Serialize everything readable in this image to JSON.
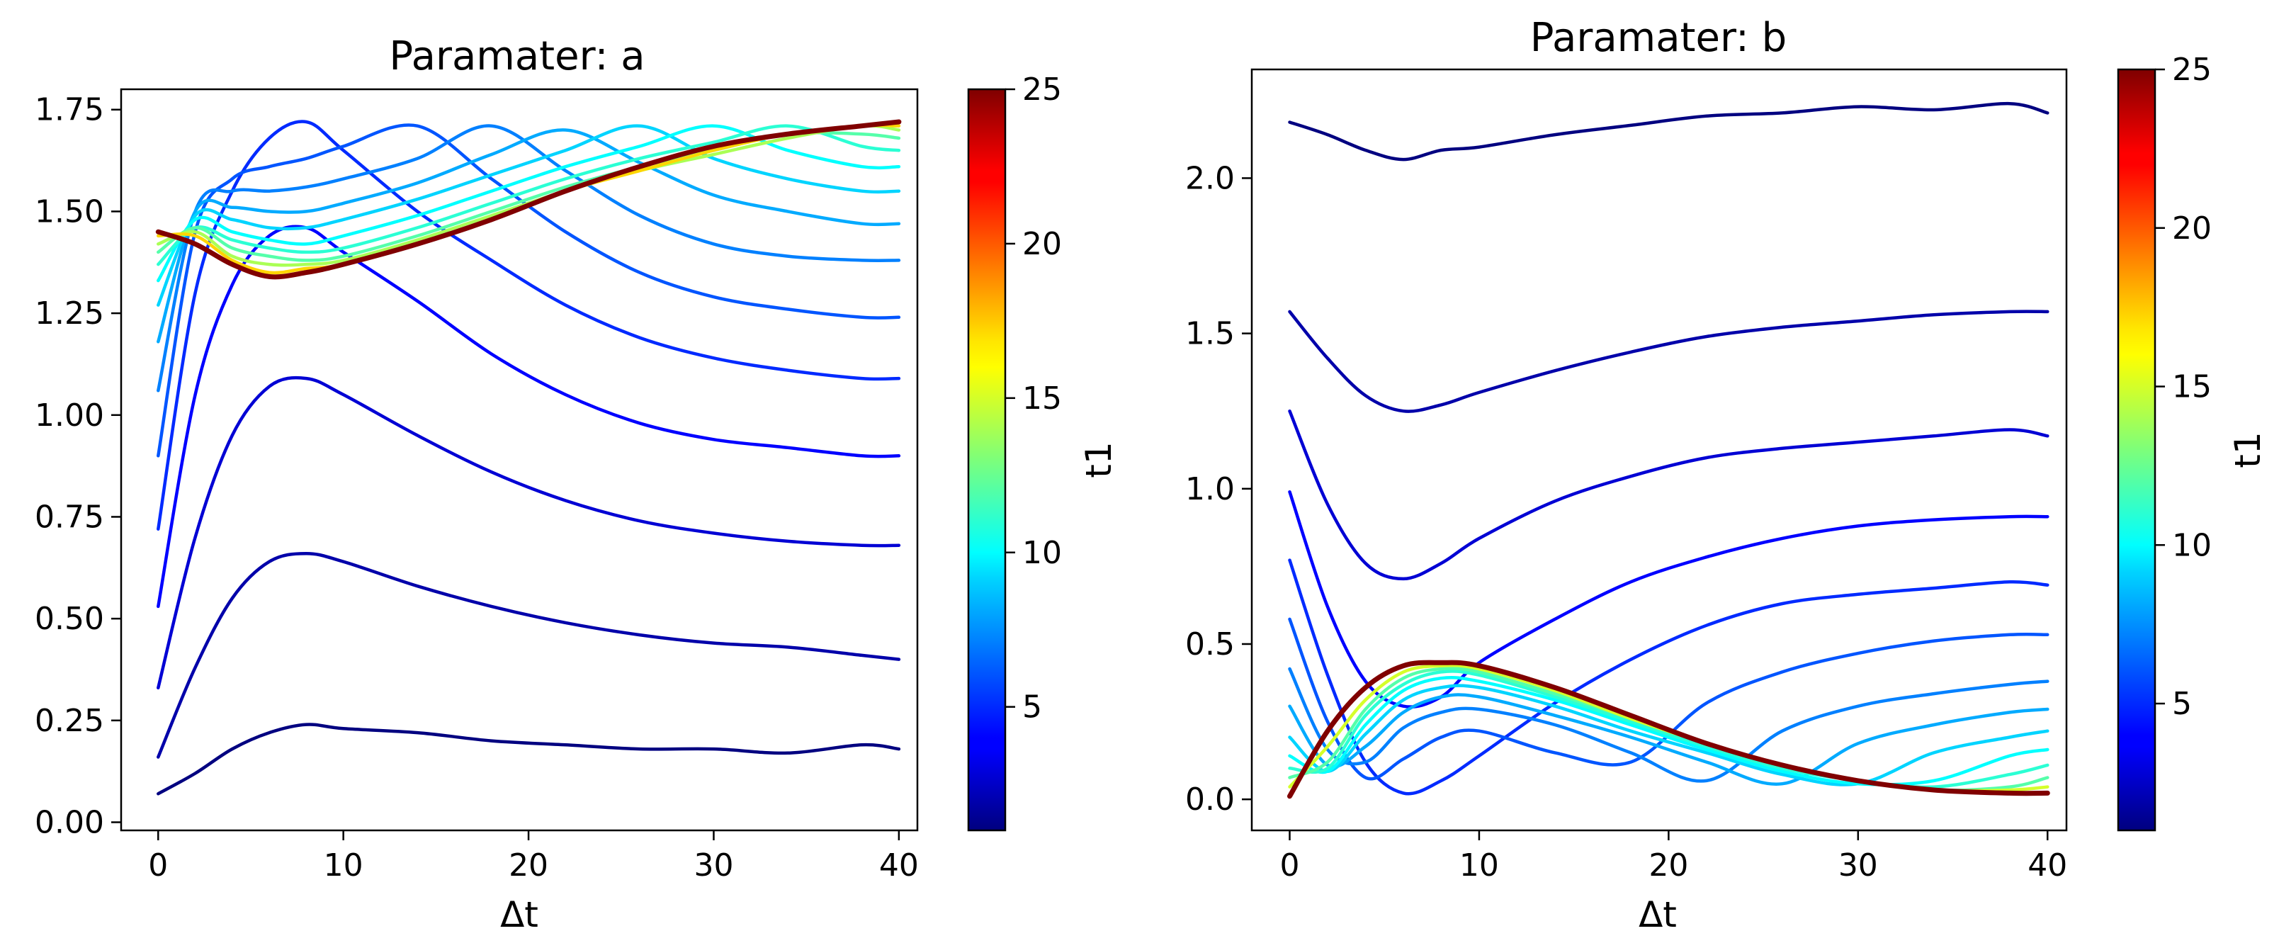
{
  "chart_data": [
    {
      "type": "line",
      "title": "Paramater: a",
      "xlabel": "Δt",
      "ylabel": "",
      "xlim": [
        -2,
        41
      ],
      "ylim": [
        -0.02,
        1.8
      ],
      "xticks": [
        0,
        10,
        20,
        30,
        40
      ],
      "xtick_labels": [
        "0",
        "10",
        "20",
        "30",
        "40"
      ],
      "yticks": [
        0.0,
        0.25,
        0.5,
        0.75,
        1.0,
        1.25,
        1.5,
        1.75
      ],
      "ytick_labels": [
        "0.00",
        "0.25",
        "0.50",
        "0.75",
        "1.00",
        "1.25",
        "1.50",
        "1.75"
      ],
      "colorbar": {
        "label": "t1",
        "range": [
          1,
          25
        ],
        "ticks": [
          5,
          10,
          15,
          20,
          25
        ],
        "tick_labels": [
          "5",
          "10",
          "15",
          "20",
          "25"
        ],
        "colormap": "jet"
      },
      "series": [
        {
          "name": "t1=1",
          "t1": 1,
          "x": [
            0,
            2,
            4,
            6,
            8,
            10,
            14,
            18,
            22,
            26,
            30,
            34,
            38,
            40
          ],
          "y": [
            0.07,
            0.12,
            0.18,
            0.22,
            0.24,
            0.23,
            0.22,
            0.2,
            0.19,
            0.18,
            0.18,
            0.17,
            0.19,
            0.18
          ]
        },
        {
          "name": "t1=2",
          "t1": 2,
          "x": [
            0,
            2,
            4,
            6,
            8,
            10,
            14,
            18,
            22,
            26,
            30,
            34,
            38,
            40
          ],
          "y": [
            0.16,
            0.38,
            0.55,
            0.64,
            0.66,
            0.64,
            0.58,
            0.53,
            0.49,
            0.46,
            0.44,
            0.43,
            0.41,
            0.4
          ]
        },
        {
          "name": "t1=3",
          "t1": 3,
          "x": [
            0,
            2,
            4,
            6,
            8,
            10,
            14,
            18,
            22,
            26,
            30,
            34,
            38,
            40
          ],
          "y": [
            0.33,
            0.7,
            0.95,
            1.07,
            1.09,
            1.05,
            0.95,
            0.86,
            0.79,
            0.74,
            0.71,
            0.69,
            0.68,
            0.68
          ]
        },
        {
          "name": "t1=4",
          "t1": 4,
          "x": [
            0,
            2,
            4,
            6,
            8,
            10,
            14,
            18,
            22,
            26,
            30,
            34,
            38,
            40
          ],
          "y": [
            0.53,
            1.05,
            1.32,
            1.44,
            1.46,
            1.4,
            1.28,
            1.15,
            1.05,
            0.98,
            0.94,
            0.92,
            0.9,
            0.9
          ]
        },
        {
          "name": "t1=5",
          "t1": 5,
          "x": [
            0,
            2,
            4,
            6,
            8,
            10,
            14,
            18,
            22,
            26,
            30,
            34,
            38,
            40
          ],
          "y": [
            0.72,
            1.3,
            1.55,
            1.68,
            1.72,
            1.65,
            1.5,
            1.38,
            1.27,
            1.19,
            1.14,
            1.11,
            1.09,
            1.09
          ]
        },
        {
          "name": "t1=6",
          "t1": 6,
          "x": [
            0,
            2,
            4,
            6,
            8,
            10,
            14,
            18,
            22,
            26,
            30,
            34,
            38,
            40
          ],
          "y": [
            0.9,
            1.45,
            1.58,
            1.61,
            1.63,
            1.66,
            1.71,
            1.58,
            1.45,
            1.35,
            1.29,
            1.26,
            1.24,
            1.24
          ]
        },
        {
          "name": "t1=7",
          "t1": 7,
          "x": [
            0,
            2,
            4,
            6,
            8,
            10,
            14,
            18,
            22,
            26,
            30,
            34,
            38,
            40
          ],
          "y": [
            1.06,
            1.5,
            1.55,
            1.55,
            1.56,
            1.58,
            1.63,
            1.71,
            1.6,
            1.49,
            1.42,
            1.39,
            1.38,
            1.38
          ]
        },
        {
          "name": "t1=8",
          "t1": 8,
          "x": [
            0,
            2,
            4,
            6,
            8,
            10,
            14,
            18,
            22,
            26,
            30,
            34,
            38,
            40
          ],
          "y": [
            1.18,
            1.5,
            1.51,
            1.5,
            1.5,
            1.52,
            1.57,
            1.64,
            1.7,
            1.62,
            1.54,
            1.5,
            1.47,
            1.47
          ]
        },
        {
          "name": "t1=9",
          "t1": 9,
          "x": [
            0,
            2,
            4,
            6,
            8,
            10,
            14,
            18,
            22,
            26,
            30,
            34,
            38,
            40
          ],
          "y": [
            1.27,
            1.49,
            1.48,
            1.46,
            1.46,
            1.48,
            1.53,
            1.59,
            1.65,
            1.71,
            1.63,
            1.58,
            1.55,
            1.55
          ]
        },
        {
          "name": "t1=10",
          "t1": 10,
          "x": [
            0,
            2,
            4,
            6,
            8,
            10,
            14,
            18,
            22,
            26,
            30,
            34,
            38,
            40
          ],
          "y": [
            1.33,
            1.48,
            1.45,
            1.43,
            1.42,
            1.44,
            1.49,
            1.55,
            1.61,
            1.66,
            1.71,
            1.65,
            1.61,
            1.61
          ]
        },
        {
          "name": "t1=11",
          "t1": 11,
          "x": [
            0,
            2,
            4,
            6,
            8,
            10,
            14,
            18,
            22,
            26,
            30,
            34,
            38,
            40
          ],
          "y": [
            1.37,
            1.46,
            1.43,
            1.41,
            1.4,
            1.41,
            1.46,
            1.52,
            1.58,
            1.63,
            1.67,
            1.71,
            1.66,
            1.65
          ]
        },
        {
          "name": "t1=12",
          "t1": 12,
          "x": [
            0,
            2,
            4,
            6,
            8,
            10,
            14,
            18,
            22,
            26,
            30,
            34,
            38,
            40
          ],
          "y": [
            1.4,
            1.46,
            1.41,
            1.39,
            1.38,
            1.39,
            1.44,
            1.5,
            1.56,
            1.61,
            1.65,
            1.69,
            1.69,
            1.68
          ]
        },
        {
          "name": "t1=14",
          "t1": 14,
          "x": [
            0,
            2,
            4,
            6,
            8,
            10,
            14,
            18,
            22,
            26,
            30,
            34,
            38,
            40
          ],
          "y": [
            1.42,
            1.45,
            1.39,
            1.37,
            1.37,
            1.38,
            1.43,
            1.49,
            1.55,
            1.6,
            1.64,
            1.68,
            1.71,
            1.7
          ]
        },
        {
          "name": "t1=17",
          "t1": 17,
          "x": [
            0,
            2,
            4,
            6,
            8,
            10,
            14,
            18,
            22,
            26,
            30,
            34,
            38,
            40
          ],
          "y": [
            1.44,
            1.44,
            1.38,
            1.35,
            1.36,
            1.37,
            1.42,
            1.48,
            1.55,
            1.6,
            1.65,
            1.69,
            1.71,
            1.71
          ]
        },
        {
          "name": "t1=25",
          "t1": 25,
          "x": [
            0,
            2,
            4,
            6,
            8,
            10,
            14,
            18,
            22,
            26,
            30,
            34,
            38,
            40
          ],
          "y": [
            1.45,
            1.42,
            1.37,
            1.34,
            1.35,
            1.37,
            1.42,
            1.48,
            1.55,
            1.61,
            1.66,
            1.69,
            1.71,
            1.72
          ]
        }
      ]
    },
    {
      "type": "line",
      "title": "Paramater: b",
      "xlabel": "Δt",
      "ylabel": "",
      "xlim": [
        -2,
        41
      ],
      "ylim": [
        -0.1,
        2.35
      ],
      "xticks": [
        0,
        10,
        20,
        30,
        40
      ],
      "xtick_labels": [
        "0",
        "10",
        "20",
        "30",
        "40"
      ],
      "yticks": [
        0.0,
        0.5,
        1.0,
        1.5,
        2.0
      ],
      "ytick_labels": [
        "0.0",
        "0.5",
        "1.0",
        "1.5",
        "2.0"
      ],
      "colorbar": {
        "label": "t1",
        "range": [
          1,
          25
        ],
        "ticks": [
          5,
          10,
          15,
          20,
          25
        ],
        "tick_labels": [
          "5",
          "10",
          "15",
          "20",
          "25"
        ],
        "colormap": "jet"
      },
      "series": [
        {
          "name": "t1=1",
          "t1": 1,
          "x": [
            0,
            2,
            4,
            6,
            8,
            10,
            14,
            18,
            22,
            26,
            30,
            34,
            38,
            40
          ],
          "y": [
            2.18,
            2.14,
            2.09,
            2.06,
            2.09,
            2.1,
            2.14,
            2.17,
            2.2,
            2.21,
            2.23,
            2.22,
            2.24,
            2.21
          ]
        },
        {
          "name": "t1=2",
          "t1": 2,
          "x": [
            0,
            2,
            4,
            6,
            8,
            10,
            14,
            18,
            22,
            26,
            30,
            34,
            38,
            40
          ],
          "y": [
            1.57,
            1.42,
            1.3,
            1.25,
            1.27,
            1.31,
            1.38,
            1.44,
            1.49,
            1.52,
            1.54,
            1.56,
            1.57,
            1.57
          ]
        },
        {
          "name": "t1=3",
          "t1": 3,
          "x": [
            0,
            2,
            4,
            6,
            8,
            10,
            14,
            18,
            22,
            26,
            30,
            34,
            38,
            40
          ],
          "y": [
            1.25,
            0.95,
            0.76,
            0.71,
            0.76,
            0.84,
            0.96,
            1.04,
            1.1,
            1.13,
            1.15,
            1.17,
            1.19,
            1.17
          ]
        },
        {
          "name": "t1=4",
          "t1": 4,
          "x": [
            0,
            2,
            4,
            6,
            8,
            10,
            14,
            18,
            22,
            26,
            30,
            34,
            38,
            40
          ],
          "y": [
            0.99,
            0.62,
            0.38,
            0.3,
            0.33,
            0.44,
            0.58,
            0.7,
            0.78,
            0.84,
            0.88,
            0.9,
            0.91,
            0.91
          ]
        },
        {
          "name": "t1=5",
          "t1": 5,
          "x": [
            0,
            2,
            4,
            6,
            8,
            10,
            14,
            18,
            22,
            26,
            30,
            34,
            38,
            40
          ],
          "y": [
            0.77,
            0.4,
            0.12,
            0.02,
            0.06,
            0.14,
            0.31,
            0.45,
            0.56,
            0.63,
            0.66,
            0.68,
            0.7,
            0.69
          ]
        },
        {
          "name": "t1=6",
          "t1": 6,
          "x": [
            0,
            2,
            4,
            6,
            8,
            10,
            14,
            18,
            22,
            26,
            30,
            34,
            38,
            40
          ],
          "y": [
            0.58,
            0.25,
            0.07,
            0.13,
            0.2,
            0.22,
            0.15,
            0.12,
            0.31,
            0.41,
            0.47,
            0.51,
            0.53,
            0.53
          ]
        },
        {
          "name": "t1=7",
          "t1": 7,
          "x": [
            0,
            2,
            4,
            6,
            8,
            10,
            14,
            18,
            22,
            26,
            30,
            34,
            38,
            40
          ],
          "y": [
            0.42,
            0.16,
            0.12,
            0.23,
            0.28,
            0.29,
            0.24,
            0.15,
            0.06,
            0.22,
            0.3,
            0.34,
            0.37,
            0.38
          ]
        },
        {
          "name": "t1=8",
          "t1": 8,
          "x": [
            0,
            2,
            4,
            6,
            8,
            10,
            14,
            18,
            22,
            26,
            30,
            34,
            38,
            40
          ],
          "y": [
            0.3,
            0.11,
            0.17,
            0.28,
            0.33,
            0.33,
            0.27,
            0.2,
            0.12,
            0.05,
            0.18,
            0.24,
            0.28,
            0.29
          ]
        },
        {
          "name": "t1=9",
          "t1": 9,
          "x": [
            0,
            2,
            4,
            6,
            8,
            10,
            14,
            18,
            22,
            26,
            30,
            34,
            38,
            40
          ],
          "y": [
            0.2,
            0.09,
            0.21,
            0.32,
            0.36,
            0.36,
            0.3,
            0.22,
            0.15,
            0.08,
            0.05,
            0.15,
            0.2,
            0.22
          ]
        },
        {
          "name": "t1=10",
          "t1": 10,
          "x": [
            0,
            2,
            4,
            6,
            8,
            10,
            14,
            18,
            22,
            26,
            30,
            34,
            38,
            40
          ],
          "y": [
            0.14,
            0.09,
            0.24,
            0.35,
            0.39,
            0.38,
            0.32,
            0.24,
            0.16,
            0.09,
            0.05,
            0.06,
            0.14,
            0.16
          ]
        },
        {
          "name": "t1=11",
          "t1": 11,
          "x": [
            0,
            2,
            4,
            6,
            8,
            10,
            14,
            18,
            22,
            26,
            30,
            34,
            38,
            40
          ],
          "y": [
            0.1,
            0.1,
            0.27,
            0.37,
            0.41,
            0.4,
            0.33,
            0.25,
            0.17,
            0.1,
            0.06,
            0.04,
            0.08,
            0.11
          ]
        },
        {
          "name": "t1=12",
          "t1": 12,
          "x": [
            0,
            2,
            4,
            6,
            8,
            10,
            14,
            18,
            22,
            26,
            30,
            34,
            38,
            40
          ],
          "y": [
            0.07,
            0.12,
            0.29,
            0.39,
            0.42,
            0.41,
            0.34,
            0.26,
            0.18,
            0.11,
            0.06,
            0.03,
            0.04,
            0.07
          ]
        },
        {
          "name": "t1=15",
          "t1": 15,
          "x": [
            0,
            2,
            4,
            6,
            8,
            10,
            14,
            18,
            22,
            26,
            30,
            34,
            38,
            40
          ],
          "y": [
            0.04,
            0.17,
            0.32,
            0.41,
            0.43,
            0.42,
            0.35,
            0.26,
            0.18,
            0.11,
            0.06,
            0.03,
            0.03,
            0.04
          ]
        },
        {
          "name": "t1=25",
          "t1": 25,
          "x": [
            0,
            2,
            4,
            6,
            8,
            10,
            14,
            18,
            22,
            26,
            30,
            34,
            38,
            40
          ],
          "y": [
            0.01,
            0.22,
            0.36,
            0.43,
            0.44,
            0.43,
            0.36,
            0.27,
            0.18,
            0.11,
            0.06,
            0.03,
            0.02,
            0.02
          ]
        }
      ]
    }
  ]
}
